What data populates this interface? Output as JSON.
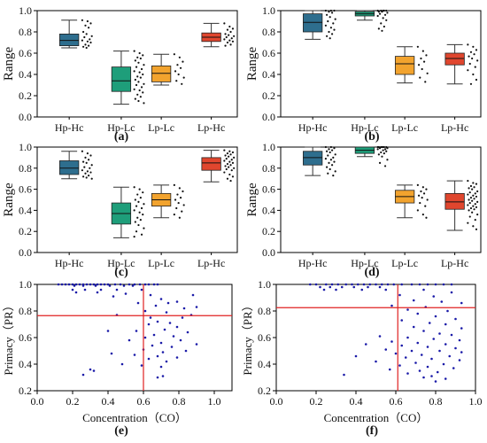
{
  "chart_data": [
    {
      "type": "box",
      "label": "(a)",
      "ylabel": "Range",
      "ylim": [
        0.0,
        1.0
      ],
      "yticks": [
        "0.0",
        "0.2",
        "0.4",
        "0.6",
        "0.8",
        "1.0"
      ],
      "categories": [
        "Hp-Hc",
        "Hp-Lc",
        "Lp-Lc",
        "Lp-Hc"
      ],
      "colors": [
        "#2E6E8E",
        "#1E9E7A",
        "#F2A32E",
        "#E0462E"
      ],
      "boxes": [
        {
          "min": 0.65,
          "q1": 0.67,
          "median": 0.72,
          "q3": 0.78,
          "max": 0.91
        },
        {
          "min": 0.12,
          "q1": 0.24,
          "median": 0.34,
          "q3": 0.47,
          "max": 0.62
        },
        {
          "min": 0.3,
          "q1": 0.33,
          "median": 0.41,
          "q3": 0.48,
          "max": 0.59
        },
        {
          "min": 0.66,
          "q1": 0.71,
          "median": 0.75,
          "q3": 0.79,
          "max": 0.88
        }
      ],
      "points": [
        [
          0.91,
          0.9,
          0.88,
          0.86,
          0.84,
          0.8,
          0.78,
          0.76,
          0.75,
          0.73,
          0.72,
          0.71,
          0.7,
          0.68,
          0.67,
          0.66,
          0.65
        ],
        [
          0.62,
          0.6,
          0.58,
          0.56,
          0.55,
          0.53,
          0.51,
          0.49,
          0.47,
          0.45,
          0.43,
          0.42,
          0.4,
          0.38,
          0.37,
          0.35,
          0.33,
          0.31,
          0.3,
          0.28,
          0.26,
          0.25,
          0.23,
          0.21,
          0.19,
          0.17,
          0.15,
          0.13
        ],
        [
          0.59,
          0.56,
          0.52,
          0.49,
          0.46,
          0.43,
          0.4,
          0.37,
          0.34,
          0.31
        ],
        [
          0.88,
          0.85,
          0.83,
          0.82,
          0.8,
          0.78,
          0.77,
          0.76,
          0.75,
          0.74,
          0.73,
          0.72,
          0.71,
          0.7,
          0.68,
          0.67
        ]
      ]
    },
    {
      "type": "box",
      "label": "(b)",
      "ylabel": "Range",
      "ylim": [
        0.0,
        1.0
      ],
      "yticks": [
        "0.0",
        "0.2",
        "0.4",
        "0.6",
        "0.8",
        "1.0"
      ],
      "categories": [
        "Hp-Hc",
        "Hp-Lc",
        "Lp-Lc",
        "Lp-Hc"
      ],
      "colors": [
        "#2E6E8E",
        "#1E9E7A",
        "#F2A32E",
        "#E0462E"
      ],
      "boxes": [
        {
          "min": 0.73,
          "q1": 0.8,
          "median": 0.89,
          "q3": 0.97,
          "max": 1.0
        },
        {
          "min": 0.91,
          "q1": 0.95,
          "median": 0.97,
          "q3": 0.99,
          "max": 1.0
        },
        {
          "min": 0.32,
          "q1": 0.4,
          "median": 0.5,
          "q3": 0.57,
          "max": 0.66
        },
        {
          "min": 0.31,
          "q1": 0.49,
          "median": 0.55,
          "q3": 0.6,
          "max": 0.68
        }
      ],
      "points": [
        [
          1.0,
          1.0,
          1.0,
          0.99,
          0.98,
          0.96,
          0.94,
          0.92,
          0.9,
          0.88,
          0.86,
          0.84,
          0.82,
          0.8,
          0.78,
          0.76,
          0.74
        ],
        [
          1.0,
          1.0,
          1.0,
          1.0,
          1.0,
          0.99,
          0.99,
          0.98,
          0.97,
          0.96,
          0.95,
          0.93,
          0.91,
          0.88,
          0.85,
          0.83,
          0.81
        ],
        [
          0.66,
          0.62,
          0.58,
          0.55,
          0.52,
          0.49,
          0.45,
          0.41,
          0.37,
          0.33
        ],
        [
          0.68,
          0.66,
          0.63,
          0.61,
          0.59,
          0.57,
          0.55,
          0.53,
          0.5,
          0.47,
          0.44,
          0.4,
          0.35,
          0.31
        ]
      ]
    },
    {
      "type": "box",
      "label": "(c)",
      "ylabel": "Range",
      "ylim": [
        0.0,
        1.0
      ],
      "yticks": [
        "0.0",
        "0.2",
        "0.4",
        "0.6",
        "0.8",
        "1.0"
      ],
      "categories": [
        "Hp-Hc",
        "Hp-Lc",
        "Lp-Lc",
        "Lp-Hc"
      ],
      "colors": [
        "#2E6E8E",
        "#1E9E7A",
        "#F2A32E",
        "#E0462E"
      ],
      "boxes": [
        {
          "min": 0.7,
          "q1": 0.74,
          "median": 0.8,
          "q3": 0.87,
          "max": 0.96
        },
        {
          "min": 0.14,
          "q1": 0.27,
          "median": 0.37,
          "q3": 0.47,
          "max": 0.62
        },
        {
          "min": 0.33,
          "q1": 0.44,
          "median": 0.5,
          "q3": 0.56,
          "max": 0.64
        },
        {
          "min": 0.67,
          "q1": 0.78,
          "median": 0.85,
          "q3": 0.9,
          "max": 0.97
        }
      ],
      "points": [
        [
          0.96,
          0.94,
          0.92,
          0.9,
          0.88,
          0.86,
          0.85,
          0.83,
          0.81,
          0.8,
          0.78,
          0.77,
          0.76,
          0.75,
          0.73,
          0.72,
          0.71,
          0.7
        ],
        [
          0.62,
          0.6,
          0.57,
          0.55,
          0.52,
          0.5,
          0.48,
          0.46,
          0.44,
          0.42,
          0.4,
          0.38,
          0.36,
          0.33,
          0.31,
          0.29,
          0.26,
          0.23,
          0.2,
          0.17,
          0.15
        ],
        [
          0.64,
          0.61,
          0.58,
          0.55,
          0.52,
          0.5,
          0.47,
          0.45,
          0.42,
          0.39,
          0.36,
          0.33
        ],
        [
          0.97,
          0.96,
          0.95,
          0.94,
          0.93,
          0.92,
          0.91,
          0.9,
          0.89,
          0.88,
          0.87,
          0.86,
          0.85,
          0.84,
          0.83,
          0.82,
          0.81,
          0.8,
          0.79,
          0.78,
          0.76,
          0.74,
          0.72,
          0.7,
          0.68
        ]
      ]
    },
    {
      "type": "box",
      "label": "(d)",
      "ylabel": "Range",
      "ylim": [
        0.0,
        1.0
      ],
      "yticks": [
        "0.0",
        "0.2",
        "0.4",
        "0.6",
        "0.8",
        "1.0"
      ],
      "categories": [
        "Hp-Hc",
        "Hp-Lc",
        "Lp-Lc",
        "Lp-Hc"
      ],
      "colors": [
        "#2E6E8E",
        "#1E9E7A",
        "#F2A32E",
        "#E0462E"
      ],
      "boxes": [
        {
          "min": 0.73,
          "q1": 0.83,
          "median": 0.9,
          "q3": 0.96,
          "max": 1.0
        },
        {
          "min": 0.91,
          "q1": 0.94,
          "median": 0.97,
          "q3": 1.0,
          "max": 1.0
        },
        {
          "min": 0.33,
          "q1": 0.47,
          "median": 0.53,
          "q3": 0.59,
          "max": 0.64
        },
        {
          "min": 0.21,
          "q1": 0.41,
          "median": 0.48,
          "q3": 0.56,
          "max": 0.68
        }
      ],
      "points": [
        [
          1.0,
          1.0,
          0.99,
          0.98,
          0.97,
          0.96,
          0.95,
          0.93,
          0.92,
          0.9,
          0.89,
          0.88,
          0.86,
          0.85,
          0.83,
          0.81,
          0.79,
          0.77,
          0.75,
          0.73
        ],
        [
          1.0,
          1.0,
          1.0,
          1.0,
          1.0,
          1.0,
          1.0,
          0.99,
          0.99,
          0.98,
          0.98,
          0.97,
          0.96,
          0.95,
          0.94,
          0.93,
          0.91,
          0.88,
          0.85,
          0.82
        ],
        [
          0.64,
          0.62,
          0.6,
          0.58,
          0.56,
          0.54,
          0.52,
          0.5,
          0.47,
          0.44,
          0.4,
          0.36,
          0.33
        ],
        [
          0.68,
          0.66,
          0.65,
          0.63,
          0.62,
          0.61,
          0.6,
          0.58,
          0.57,
          0.56,
          0.55,
          0.54,
          0.53,
          0.52,
          0.51,
          0.5,
          0.49,
          0.48,
          0.47,
          0.46,
          0.45,
          0.44,
          0.43,
          0.42,
          0.41,
          0.4,
          0.38,
          0.36,
          0.34,
          0.31,
          0.28,
          0.25,
          0.22
        ]
      ]
    },
    {
      "type": "scatter",
      "label": "(e)",
      "xlabel": "Concentration（CO）",
      "ylabel": "Primacy（PR）",
      "xlim": [
        0.0,
        1.1
      ],
      "ylim": [
        0.2,
        1.0
      ],
      "xticks": [
        "0.0",
        "0.2",
        "0.4",
        "0.6",
        "0.8",
        "1.0"
      ],
      "yticks": [
        "0.2",
        "0.4",
        "0.6",
        "0.8",
        "1.0"
      ],
      "point_color": "#1a1aa8",
      "ref_color": "#e02020",
      "vline_x": 0.6,
      "hline_y": 0.765,
      "points": [
        [
          0.12,
          1.0
        ],
        [
          0.14,
          1.0
        ],
        [
          0.16,
          1.0
        ],
        [
          0.18,
          1.0
        ],
        [
          0.2,
          1.0
        ],
        [
          0.22,
          1.0
        ],
        [
          0.24,
          1.0
        ],
        [
          0.26,
          1.0
        ],
        [
          0.28,
          1.0
        ],
        [
          0.3,
          1.0
        ],
        [
          0.32,
          1.0
        ],
        [
          0.34,
          1.0
        ],
        [
          0.36,
          1.0
        ],
        [
          0.38,
          1.0
        ],
        [
          0.4,
          1.0
        ],
        [
          0.44,
          1.0
        ],
        [
          0.47,
          1.0
        ],
        [
          0.52,
          1.0
        ],
        [
          0.55,
          1.0
        ],
        [
          0.58,
          1.0
        ],
        [
          0.61,
          1.0
        ],
        [
          0.63,
          1.0
        ],
        [
          0.66,
          1.0
        ],
        [
          0.68,
          1.0
        ],
        [
          0.21,
          0.99
        ],
        [
          0.26,
          0.99
        ],
        [
          0.33,
          0.99
        ],
        [
          0.41,
          0.99
        ],
        [
          0.49,
          0.99
        ],
        [
          0.54,
          0.99
        ],
        [
          0.2,
          0.96
        ],
        [
          0.27,
          0.96
        ],
        [
          0.36,
          0.96
        ],
        [
          0.45,
          0.96
        ],
        [
          0.59,
          0.96
        ],
        [
          0.22,
          0.94
        ],
        [
          0.34,
          0.94
        ],
        [
          0.5,
          0.93
        ],
        [
          0.43,
          0.91
        ],
        [
          0.64,
          0.92
        ],
        [
          0.88,
          0.92
        ],
        [
          0.7,
          0.89
        ],
        [
          0.79,
          0.87
        ],
        [
          0.57,
          0.86
        ],
        [
          0.74,
          0.86
        ],
        [
          0.67,
          0.84
        ],
        [
          0.9,
          0.83
        ],
        [
          0.83,
          0.82
        ],
        [
          0.61,
          0.8
        ],
        [
          0.73,
          0.79
        ],
        [
          0.45,
          0.77
        ],
        [
          0.87,
          0.77
        ],
        [
          0.64,
          0.75
        ],
        [
          0.82,
          0.75
        ],
        [
          0.68,
          0.72
        ],
        [
          0.75,
          0.71
        ],
        [
          0.63,
          0.7
        ],
        [
          0.79,
          0.68
        ],
        [
          0.72,
          0.66
        ],
        [
          0.4,
          0.65
        ],
        [
          0.56,
          0.65
        ],
        [
          0.85,
          0.64
        ],
        [
          0.66,
          0.62
        ],
        [
          0.77,
          0.61
        ],
        [
          0.61,
          0.6
        ],
        [
          0.81,
          0.58
        ],
        [
          0.52,
          0.58
        ],
        [
          0.7,
          0.56
        ],
        [
          0.9,
          0.55
        ],
        [
          0.65,
          0.54
        ],
        [
          0.76,
          0.53
        ],
        [
          0.6,
          0.51
        ],
        [
          0.84,
          0.5
        ],
        [
          0.71,
          0.49
        ],
        [
          0.42,
          0.48
        ],
        [
          0.55,
          0.47
        ],
        [
          0.68,
          0.46
        ],
        [
          0.79,
          0.45
        ],
        [
          0.63,
          0.44
        ],
        [
          0.73,
          0.42
        ],
        [
          0.48,
          0.4
        ],
        [
          0.59,
          0.39
        ],
        [
          0.7,
          0.38
        ],
        [
          0.3,
          0.36
        ],
        [
          0.32,
          0.35
        ],
        [
          0.26,
          0.32
        ],
        [
          0.71,
          0.31
        ],
        [
          0.68,
          0.3
        ]
      ]
    },
    {
      "type": "scatter",
      "label": "(f)",
      "xlabel": "Concentration（CO）",
      "ylabel": "Primacy（PR）",
      "xlim": [
        0.0,
        1.0
      ],
      "ylim": [
        0.2,
        1.0
      ],
      "xticks": [
        "0.0",
        "0.2",
        "0.4",
        "0.6",
        "0.8",
        "1.0"
      ],
      "yticks": [
        "0.2",
        "0.4",
        "0.6",
        "0.8",
        "1.0"
      ],
      "point_color": "#1a1aa8",
      "ref_color": "#e02020",
      "vline_x": 0.61,
      "hline_y": 0.825,
      "points": [
        [
          0.17,
          1.0
        ],
        [
          0.2,
          1.0
        ],
        [
          0.25,
          1.0
        ],
        [
          0.28,
          1.0
        ],
        [
          0.31,
          1.0
        ],
        [
          0.35,
          1.0
        ],
        [
          0.38,
          1.0
        ],
        [
          0.41,
          1.0
        ],
        [
          0.44,
          1.0
        ],
        [
          0.47,
          1.0
        ],
        [
          0.5,
          1.0
        ],
        [
          0.53,
          1.0
        ],
        [
          0.56,
          1.0
        ],
        [
          0.59,
          1.0
        ],
        [
          0.63,
          1.0
        ],
        [
          0.68,
          1.0
        ],
        [
          0.72,
          1.0
        ],
        [
          0.76,
          1.0
        ],
        [
          0.8,
          1.0
        ],
        [
          0.84,
          1.0
        ],
        [
          0.88,
          1.0
        ],
        [
          0.22,
          0.98
        ],
        [
          0.27,
          0.98
        ],
        [
          0.33,
          0.98
        ],
        [
          0.39,
          0.98
        ],
        [
          0.46,
          0.98
        ],
        [
          0.52,
          0.98
        ],
        [
          0.24,
          0.96
        ],
        [
          0.3,
          0.96
        ],
        [
          0.43,
          0.96
        ],
        [
          0.55,
          0.96
        ],
        [
          0.74,
          0.96
        ],
        [
          0.88,
          0.94
        ],
        [
          0.62,
          0.92
        ],
        [
          0.79,
          0.91
        ],
        [
          0.69,
          0.88
        ],
        [
          0.83,
          0.87
        ],
        [
          0.93,
          0.86
        ],
        [
          0.58,
          0.84
        ],
        [
          0.75,
          0.83
        ],
        [
          0.66,
          0.81
        ],
        [
          0.86,
          0.8
        ],
        [
          0.71,
          0.78
        ],
        [
          0.8,
          0.76
        ],
        [
          0.9,
          0.74
        ],
        [
          0.63,
          0.73
        ],
        [
          0.77,
          0.71
        ],
        [
          0.85,
          0.7
        ],
        [
          0.69,
          0.68
        ],
        [
          0.93,
          0.67
        ],
        [
          0.74,
          0.65
        ],
        [
          0.82,
          0.63
        ],
        [
          0.88,
          0.62
        ],
        [
          0.52,
          0.61
        ],
        [
          0.66,
          0.6
        ],
        [
          0.79,
          0.59
        ],
        [
          0.92,
          0.58
        ],
        [
          0.58,
          0.57
        ],
        [
          0.71,
          0.56
        ],
        [
          0.85,
          0.55
        ],
        [
          0.45,
          0.55
        ],
        [
          0.63,
          0.54
        ],
        [
          0.76,
          0.53
        ],
        [
          0.9,
          0.52
        ],
        [
          0.55,
          0.51
        ],
        [
          0.68,
          0.5
        ],
        [
          0.82,
          0.5
        ],
        [
          0.93,
          0.49
        ],
        [
          0.6,
          0.48
        ],
        [
          0.73,
          0.47
        ],
        [
          0.87,
          0.46
        ],
        [
          0.4,
          0.46
        ],
        [
          0.65,
          0.45
        ],
        [
          0.78,
          0.44
        ],
        [
          0.92,
          0.43
        ],
        [
          0.5,
          0.42
        ],
        [
          0.7,
          0.41
        ],
        [
          0.84,
          0.4
        ],
        [
          0.62,
          0.39
        ],
        [
          0.76,
          0.38
        ],
        [
          0.89,
          0.37
        ],
        [
          0.57,
          0.36
        ],
        [
          0.72,
          0.35
        ],
        [
          0.81,
          0.34
        ],
        [
          0.66,
          0.33
        ],
        [
          0.34,
          0.32
        ],
        [
          0.78,
          0.31
        ],
        [
          0.74,
          0.3
        ],
        [
          0.85,
          0.29
        ],
        [
          0.8,
          0.27
        ]
      ]
    }
  ]
}
